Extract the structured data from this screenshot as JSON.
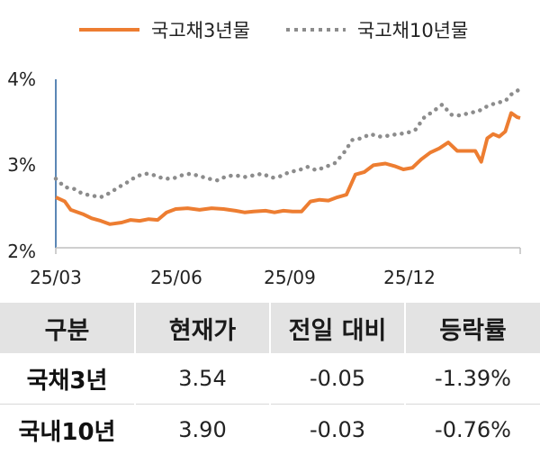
{
  "chart_data": {
    "type": "line",
    "x_ticks": [
      "25/03",
      "25/06",
      "25/09",
      "25/12"
    ],
    "y_ticks": [
      "2%",
      "3%",
      "4%"
    ],
    "ylim": [
      2.0,
      4.0
    ],
    "legend_position": "top",
    "series": [
      {
        "name": "국고채3년물",
        "color": "#ed7d31",
        "style": "solid",
        "points": [
          [
            0,
            2.6
          ],
          [
            3,
            2.55
          ],
          [
            5,
            2.45
          ],
          [
            9,
            2.4
          ],
          [
            12,
            2.35
          ],
          [
            15,
            2.32
          ],
          [
            18,
            2.28
          ],
          [
            22,
            2.3
          ],
          [
            25,
            2.33
          ],
          [
            28,
            2.32
          ],
          [
            31,
            2.34
          ],
          [
            34,
            2.33
          ],
          [
            37,
            2.42
          ],
          [
            40,
            2.46
          ],
          [
            44,
            2.47
          ],
          [
            48,
            2.45
          ],
          [
            52,
            2.47
          ],
          [
            56,
            2.46
          ],
          [
            60,
            2.44
          ],
          [
            63,
            2.42
          ],
          [
            66,
            2.43
          ],
          [
            70,
            2.44
          ],
          [
            73,
            2.42
          ],
          [
            76,
            2.44
          ],
          [
            79,
            2.43
          ],
          [
            82,
            2.43
          ],
          [
            85,
            2.55
          ],
          [
            88,
            2.57
          ],
          [
            91,
            2.56
          ],
          [
            94,
            2.6
          ],
          [
            97,
            2.63
          ],
          [
            100,
            2.87
          ],
          [
            103,
            2.9
          ],
          [
            106,
            2.98
          ],
          [
            110,
            3.0
          ],
          [
            113,
            2.97
          ],
          [
            116,
            2.93
          ],
          [
            119,
            2.95
          ],
          [
            122,
            3.05
          ],
          [
            125,
            3.13
          ],
          [
            128,
            3.18
          ],
          [
            131,
            3.25
          ],
          [
            134,
            3.15
          ],
          [
            137,
            3.15
          ],
          [
            140,
            3.15
          ],
          [
            142,
            3.02
          ],
          [
            144,
            3.3
          ],
          [
            146,
            3.35
          ],
          [
            148,
            3.32
          ],
          [
            150,
            3.38
          ],
          [
            152,
            3.6
          ],
          [
            154,
            3.55
          ],
          [
            155,
            3.54
          ]
        ]
      },
      {
        "name": "국고채10년물",
        "color": "#8c8c8c",
        "style": "dotted",
        "points": [
          [
            0,
            2.82
          ],
          [
            3,
            2.72
          ],
          [
            6,
            2.7
          ],
          [
            9,
            2.64
          ],
          [
            12,
            2.62
          ],
          [
            15,
            2.6
          ],
          [
            18,
            2.65
          ],
          [
            21,
            2.72
          ],
          [
            24,
            2.78
          ],
          [
            27,
            2.85
          ],
          [
            30,
            2.88
          ],
          [
            33,
            2.86
          ],
          [
            36,
            2.82
          ],
          [
            39,
            2.82
          ],
          [
            42,
            2.86
          ],
          [
            45,
            2.88
          ],
          [
            48,
            2.85
          ],
          [
            51,
            2.82
          ],
          [
            54,
            2.8
          ],
          [
            57,
            2.85
          ],
          [
            60,
            2.86
          ],
          [
            63,
            2.84
          ],
          [
            66,
            2.86
          ],
          [
            69,
            2.88
          ],
          [
            72,
            2.83
          ],
          [
            75,
            2.85
          ],
          [
            78,
            2.9
          ],
          [
            81,
            2.92
          ],
          [
            84,
            2.96
          ],
          [
            87,
            2.92
          ],
          [
            90,
            2.96
          ],
          [
            93,
            3.0
          ],
          [
            96,
            3.12
          ],
          [
            99,
            3.28
          ],
          [
            102,
            3.3
          ],
          [
            105,
            3.35
          ],
          [
            108,
            3.32
          ],
          [
            111,
            3.33
          ],
          [
            114,
            3.35
          ],
          [
            117,
            3.36
          ],
          [
            120,
            3.4
          ],
          [
            123,
            3.55
          ],
          [
            126,
            3.62
          ],
          [
            129,
            3.7
          ],
          [
            132,
            3.58
          ],
          [
            135,
            3.57
          ],
          [
            138,
            3.6
          ],
          [
            141,
            3.62
          ],
          [
            144,
            3.68
          ],
          [
            147,
            3.72
          ],
          [
            150,
            3.74
          ],
          [
            152,
            3.82
          ],
          [
            154,
            3.86
          ],
          [
            155,
            3.9
          ]
        ]
      }
    ]
  },
  "table": {
    "headers": [
      "구분",
      "현재가",
      "전일 대비",
      "등락률"
    ],
    "rows": [
      [
        "국채3년",
        "3.54",
        "-0.05",
        "-1.39%"
      ],
      [
        "국내10년",
        "3.90",
        "-0.03",
        "-0.76%"
      ]
    ]
  }
}
